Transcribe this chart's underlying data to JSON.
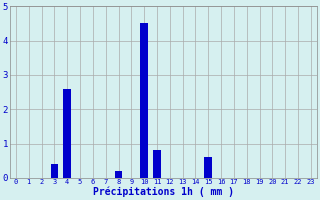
{
  "hours": [
    0,
    1,
    2,
    3,
    4,
    5,
    6,
    7,
    8,
    9,
    10,
    11,
    12,
    13,
    14,
    15,
    16,
    17,
    18,
    19,
    20,
    21,
    22,
    23
  ],
  "values": [
    0,
    0,
    0,
    0.4,
    2.6,
    0,
    0,
    0,
    0.2,
    0,
    4.5,
    0.8,
    0,
    0,
    0,
    0.6,
    0,
    0,
    0,
    0,
    0,
    0,
    0,
    0
  ],
  "bar_color": "#0000cc",
  "background_color": "#d6f0f0",
  "grid_color": "#aaaaaa",
  "xlabel": "Précipitations 1h ( mm )",
  "xlabel_color": "#0000cc",
  "tick_color": "#0000cc",
  "ylim": [
    0,
    5
  ],
  "yticks": [
    0,
    1,
    2,
    3,
    4,
    5
  ],
  "bar_width": 0.6,
  "figsize": [
    3.2,
    2.0
  ],
  "dpi": 100
}
